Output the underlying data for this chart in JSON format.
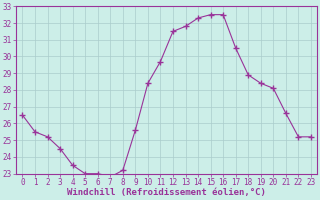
{
  "x": [
    0,
    1,
    2,
    3,
    4,
    5,
    6,
    7,
    8,
    9,
    10,
    11,
    12,
    13,
    14,
    15,
    16,
    17,
    18,
    19,
    20,
    21,
    22,
    23
  ],
  "y": [
    26.5,
    25.5,
    25.2,
    24.5,
    23.5,
    23.0,
    23.0,
    22.8,
    23.2,
    25.6,
    28.4,
    29.7,
    31.5,
    31.8,
    32.3,
    32.5,
    32.5,
    30.5,
    28.9,
    28.4,
    28.1,
    26.6,
    25.2,
    25.2
  ],
  "line_color": "#993399",
  "marker": "+",
  "marker_size": 4,
  "bg_color": "#cceee8",
  "grid_color": "#aacccc",
  "xlabel": "Windchill (Refroidissement éolien,°C)",
  "ylim": [
    23,
    33
  ],
  "xlim": [
    -0.5,
    23.5
  ],
  "yticks": [
    23,
    24,
    25,
    26,
    27,
    28,
    29,
    30,
    31,
    32,
    33
  ],
  "xticks": [
    0,
    1,
    2,
    3,
    4,
    5,
    6,
    7,
    8,
    9,
    10,
    11,
    12,
    13,
    14,
    15,
    16,
    17,
    18,
    19,
    20,
    21,
    22,
    23
  ],
  "tick_label_fontsize": 5.5,
  "xlabel_fontsize": 6.5
}
